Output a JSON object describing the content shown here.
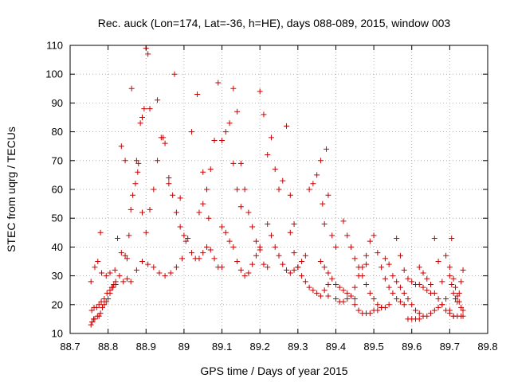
{
  "chart_data": {
    "type": "scatter",
    "title": "Rec. auck (Lon=174, Lat=-36, h=HE), days 088-089, 2015, window 003",
    "xlabel": "GPS time / Days of year 2015",
    "ylabel": "STEC from uqrg / TECUs",
    "xlim": [
      88.7,
      89.8
    ],
    "ylim": [
      10,
      110
    ],
    "xticks": [
      88.7,
      88.8,
      88.9,
      89.0,
      89.1,
      89.2,
      89.3,
      89.4,
      89.5,
      89.6,
      89.7,
      89.8
    ],
    "xtick_labels": [
      "88.7",
      "88.8",
      "88.9",
      "89",
      "89.1",
      "89.2",
      "89.3",
      "89.4",
      "89.5",
      "89.6",
      "89.7",
      "89.8"
    ],
    "yticks": [
      10,
      20,
      30,
      40,
      50,
      60,
      70,
      80,
      90,
      100,
      110
    ],
    "ytick_labels": [
      "10",
      "20",
      "30",
      "40",
      "50",
      "60",
      "70",
      "80",
      "90",
      "100",
      "110"
    ],
    "grid": "dotted",
    "marker": "+",
    "marker_color": "#cc0000",
    "series": [
      {
        "x": [
          88.755,
          88.758,
          88.762,
          88.765,
          88.772,
          88.776,
          88.78,
          88.785,
          88.79,
          88.795,
          88.8,
          88.805,
          88.81,
          88.815,
          88.82
        ],
        "y": [
          13,
          14,
          15,
          15,
          16,
          16,
          17,
          19,
          20,
          21,
          22,
          24,
          26,
          27,
          28
        ]
      },
      {
        "x": [
          88.757,
          88.763,
          88.77,
          88.776,
          88.782,
          88.79,
          88.797,
          88.805,
          88.813,
          88.82
        ],
        "y": [
          18,
          19,
          19,
          20,
          21,
          22,
          24,
          25,
          26,
          27
        ]
      },
      {
        "x": [
          88.755,
          88.765,
          88.773,
          88.783,
          88.795,
          88.805,
          88.818,
          88.83,
          88.84,
          88.85
        ],
        "y": [
          28,
          33,
          35,
          31,
          30,
          31,
          32,
          30,
          28,
          29
        ]
      },
      {
        "x": [
          88.78,
          88.825,
          88.835,
          88.845,
          88.85,
          88.855,
          88.86,
          88.865,
          88.872,
          88.878
        ],
        "y": [
          45,
          43,
          38,
          37,
          36,
          44,
          53,
          58,
          62,
          66
        ]
      },
      {
        "x": [
          88.835,
          88.845,
          88.862,
          88.875,
          88.885,
          88.89,
          88.895,
          88.9,
          88.905,
          88.91
        ],
        "y": [
          75,
          70,
          95,
          70,
          83,
          85,
          88,
          109,
          107,
          88
        ]
      },
      {
        "x": [
          88.88,
          88.89,
          88.9,
          88.91,
          88.92,
          88.93,
          88.94,
          88.95,
          88.96,
          88.97,
          88.98,
          88.99
        ],
        "y": [
          69,
          52,
          45,
          53,
          60,
          70,
          78,
          76,
          64,
          58,
          52,
          47
        ]
      },
      {
        "x": [
          88.86,
          88.875,
          88.89,
          88.905,
          88.92,
          88.935,
          88.95,
          88.965,
          88.98,
          88.995
        ],
        "y": [
          28,
          32,
          35,
          34,
          33,
          31,
          30,
          31,
          33,
          36
        ]
      },
      {
        "x": [
          88.93,
          88.945,
          88.96,
          88.975,
          88.99,
          89.005,
          89.02,
          89.035,
          89.05,
          89.065
        ],
        "y": [
          91,
          78,
          62,
          100,
          57,
          42,
          80,
          93,
          66,
          50
        ]
      },
      {
        "x": [
          89.0,
          89.01,
          89.02,
          89.03,
          89.04,
          89.05,
          89.06,
          89.07,
          89.08,
          89.09,
          89.1
        ],
        "y": [
          44,
          43,
          38,
          36,
          36,
          38,
          40,
          39,
          36,
          33,
          33
        ]
      },
      {
        "x": [
          89.04,
          89.05,
          89.06,
          89.07,
          89.08,
          89.09,
          89.1,
          89.11,
          89.12,
          89.13,
          89.14,
          89.15
        ],
        "y": [
          52,
          55,
          60,
          67,
          77,
          97,
          77,
          80,
          83,
          69,
          60,
          54
        ]
      },
      {
        "x": [
          89.1,
          89.11,
          89.12,
          89.13,
          89.14,
          89.15,
          89.16,
          89.17,
          89.18,
          89.19,
          89.2
        ],
        "y": [
          47,
          45,
          42,
          40,
          35,
          32,
          30,
          31,
          34,
          37,
          40
        ]
      },
      {
        "x": [
          89.13,
          89.14,
          89.15,
          89.16,
          89.17,
          89.18,
          89.19,
          89.2,
          89.21,
          89.22
        ],
        "y": [
          95,
          87,
          69,
          60,
          52,
          47,
          42,
          39,
          34,
          33
        ]
      },
      {
        "x": [
          89.2,
          89.21,
          89.22,
          89.23,
          89.24,
          89.25,
          89.26,
          89.27,
          89.28,
          89.29
        ],
        "y": [
          94,
          86,
          72,
          78,
          67,
          60,
          63,
          82,
          58,
          48
        ]
      },
      {
        "x": [
          89.22,
          89.23,
          89.24,
          89.25,
          89.26,
          89.27,
          89.28,
          89.29,
          89.3,
          89.31,
          89.32
        ],
        "y": [
          48,
          44,
          40,
          37,
          34,
          32,
          31,
          32,
          33,
          35,
          37
        ]
      },
      {
        "x": [
          89.28,
          89.29,
          89.3,
          89.31,
          89.32,
          89.33,
          89.34,
          89.35,
          89.36,
          89.37,
          89.38
        ],
        "y": [
          45,
          38,
          33,
          30,
          28,
          26,
          25,
          24,
          23,
          25,
          27
        ]
      },
      {
        "x": [
          89.33,
          89.34,
          89.35,
          89.36,
          89.365,
          89.37,
          89.375,
          89.38,
          89.39,
          89.4
        ],
        "y": [
          60,
          62,
          65,
          70,
          55,
          48,
          74,
          58,
          44,
          40
        ]
      },
      {
        "x": [
          89.36,
          89.37,
          89.38,
          89.39,
          89.4,
          89.41,
          89.42,
          89.43,
          89.44,
          89.45
        ],
        "y": [
          35,
          33,
          31,
          29,
          27,
          26,
          25,
          24,
          23,
          22
        ]
      },
      {
        "x": [
          89.38,
          89.4,
          89.41,
          89.42,
          89.43,
          89.44,
          89.45,
          89.46,
          89.47,
          89.48
        ],
        "y": [
          23,
          22,
          21,
          21,
          22,
          23,
          26,
          30,
          33,
          34
        ]
      },
      {
        "x": [
          89.42,
          89.43,
          89.44,
          89.45,
          89.46,
          89.47,
          89.48,
          89.49,
          89.5,
          89.51,
          89.52
        ],
        "y": [
          49,
          44,
          40,
          36,
          33,
          30,
          27,
          24,
          22,
          20,
          19
        ]
      },
      {
        "x": [
          89.45,
          89.46,
          89.47,
          89.48,
          89.49,
          89.5,
          89.51,
          89.52,
          89.53,
          89.54
        ],
        "y": [
          20,
          18,
          17,
          17,
          17,
          18,
          18,
          19,
          19,
          20
        ]
      },
      {
        "x": [
          89.48,
          89.49,
          89.5,
          89.51,
          89.52,
          89.53,
          89.54,
          89.55,
          89.56,
          89.57,
          89.58
        ],
        "y": [
          37,
          42,
          44,
          38,
          33,
          29,
          26,
          24,
          22,
          21,
          20
        ]
      },
      {
        "x": [
          89.53,
          89.54,
          89.55,
          89.56,
          89.57,
          89.58,
          89.59,
          89.6,
          89.61,
          89.62
        ],
        "y": [
          36,
          34,
          30,
          28,
          26,
          24,
          22,
          20,
          18,
          17
        ]
      },
      {
        "x": [
          89.56,
          89.57,
          89.58,
          89.59,
          89.6,
          89.61,
          89.62,
          89.63,
          89.64,
          89.65
        ],
        "y": [
          43,
          37,
          32,
          29,
          28,
          27,
          27,
          26,
          25,
          24
        ]
      },
      {
        "x": [
          89.59,
          89.6,
          89.61,
          89.62,
          89.63,
          89.64,
          89.65,
          89.66,
          89.67,
          89.68
        ],
        "y": [
          15,
          15,
          15,
          15,
          16,
          16,
          17,
          18,
          19,
          20
        ]
      },
      {
        "x": [
          89.62,
          89.63,
          89.64,
          89.65,
          89.66,
          89.67,
          89.68,
          89.69,
          89.7,
          89.71
        ],
        "y": [
          33,
          31,
          29,
          27,
          24,
          22,
          20,
          18,
          17,
          16
        ]
      },
      {
        "x": [
          89.66,
          89.67,
          89.68,
          89.69,
          89.7,
          89.71,
          89.72,
          89.73,
          89.735
        ],
        "y": [
          43,
          35,
          28,
          22,
          18,
          16,
          16,
          16,
          16
        ]
      },
      {
        "x": [
          89.69,
          89.7,
          89.705,
          89.71,
          89.715,
          89.72,
          89.725,
          89.73,
          89.735
        ],
        "y": [
          37,
          33,
          43,
          29,
          26,
          23,
          21,
          19,
          18
        ]
      },
      {
        "x": [
          89.7,
          89.705,
          89.71,
          89.715,
          89.72,
          89.725,
          89.73,
          89.735
        ],
        "y": [
          30,
          27,
          24,
          22,
          21,
          24,
          28,
          32
        ]
      }
    ]
  }
}
